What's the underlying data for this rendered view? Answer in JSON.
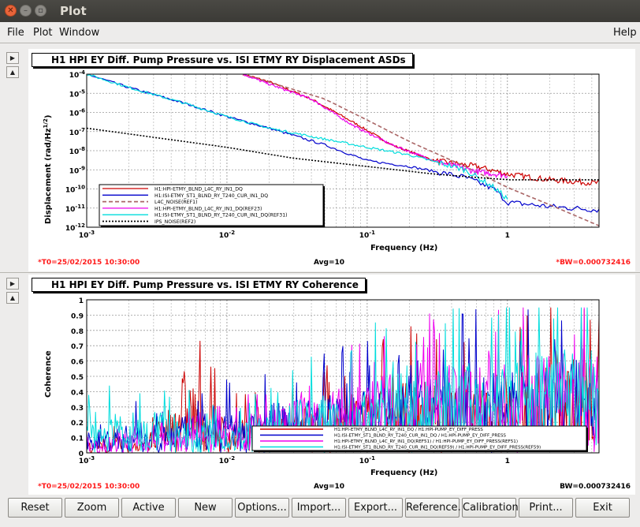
{
  "window": {
    "title": "Plot"
  },
  "menu": {
    "file": "File",
    "plot": "Plot",
    "window": "Window",
    "help": "Help"
  },
  "buttons": {
    "reset": "Reset",
    "zoom": "Zoom",
    "active": "Active",
    "new": "New",
    "options": "Options...",
    "import": "Import...",
    "export": "Export...",
    "reference": "Reference...",
    "calibration": "Calibration...",
    "print": "Print...",
    "exit": "Exit"
  },
  "panel1": {
    "title": "H1 HPI EY Diff. Pump Pressure vs. ISI ETMY RY Displacement ASDs",
    "t0": "*T0=25/02/2015 10:30:00",
    "avg": "Avg=10",
    "bw": "*BW=0.000732416"
  },
  "panel2": {
    "title": "H1 HPI EY Diff. Pump Pressure vs. ISI ETMY RY Coherence",
    "t0": "*T0=25/02/2015 10:30:00",
    "avg": "Avg=10",
    "bw": "BW=0.000732416"
  },
  "chart_data": [
    {
      "type": "line",
      "title": "H1 HPI EY Diff. Pump Pressure vs. ISI ETMY RY Displacement ASDs",
      "xlabel": "Frequency (Hz)",
      "ylabel": "Displacement (rad/Hz^1/2)",
      "xscale": "log",
      "yscale": "log",
      "xlim": [
        0.001,
        4.5
      ],
      "ylim": [
        1e-12,
        0.0001
      ],
      "grid": true,
      "x_ticks": [
        "10^-3",
        "10^-2",
        "10^-1",
        "1"
      ],
      "y_ticks": [
        "10^-12",
        "10^-11",
        "10^-10",
        "10^-9",
        "10^-8",
        "10^-7",
        "10^-6",
        "10^-5",
        "10^-4"
      ],
      "legend_position": "bottom-left",
      "series": [
        {
          "name": "H1:HPI-ETMY_BLND_L4C_RY_IN1_DQ",
          "color": "#cc0000",
          "style": "solid",
          "x": [
            0.013,
            0.02,
            0.04,
            0.08,
            0.15,
            0.3,
            0.6,
            1,
            2,
            4.5
          ],
          "y": [
            0.0001,
            4e-05,
            5e-06,
            3e-07,
            2e-08,
            3e-09,
            1.5e-09,
            6e-10,
            3e-10,
            2e-10
          ]
        },
        {
          "name": "H1:ISI-ETMY_ST1_BLND_RY_T240_CUR_IN1_DQ",
          "color": "#0000cc",
          "style": "solid",
          "x": [
            0.001,
            0.002,
            0.005,
            0.01,
            0.02,
            0.05,
            0.1,
            0.2,
            0.5,
            0.8,
            1,
            2,
            4.5
          ],
          "y": [
            0.0001,
            2e-05,
            3e-06,
            6e-07,
            1.5e-07,
            2e-08,
            3e-09,
            1.5e-09,
            4e-10,
            1e-10,
            2e-11,
            1.2e-11,
            8e-12
          ]
        },
        {
          "name": "L4C_NOISE(REF1)",
          "color": "#aa6666",
          "style": "dashed",
          "x": [
            0.013,
            0.05,
            0.1,
            0.2,
            0.5,
            1,
            2,
            4.5
          ],
          "y": [
            0.0001,
            5e-06,
            4e-07,
            3e-08,
            1.5e-09,
            1.2e-10,
            1.5e-11,
            1.2e-12
          ]
        },
        {
          "name": "H1:HPI-ETMY_BLND_L4C_RY_IN1_DQ(REF23)",
          "color": "#ee00ee",
          "style": "solid",
          "x": [
            0.013,
            0.02,
            0.04,
            0.08,
            0.15,
            0.3,
            0.6,
            1
          ],
          "y": [
            0.0001,
            3e-05,
            5e-06,
            2e-07,
            2e-08,
            3e-09,
            8e-10,
            5e-10
          ]
        },
        {
          "name": "H1:ISI-ETMY_ST1_BLND_RY_T240_CUR_IN1_DQ(REF31)",
          "color": "#00dddd",
          "style": "solid",
          "x": [
            0.001,
            0.002,
            0.005,
            0.01,
            0.02,
            0.05,
            0.1,
            0.2,
            0.5,
            0.8,
            1
          ],
          "y": [
            0.0001,
            2e-05,
            3e-06,
            6e-07,
            1.5e-07,
            4e-08,
            1.5e-08,
            6e-09,
            1e-09,
            1.2e-10,
            3e-11
          ]
        },
        {
          "name": "IPS_NOISE(REF2)",
          "color": "#000000",
          "style": "dotted",
          "x": [
            0.001,
            0.003,
            0.01,
            0.03,
            0.1,
            0.3,
            1,
            4.5
          ],
          "y": [
            1.5e-07,
            5e-08,
            1.5e-08,
            4e-09,
            1.5e-09,
            6e-10,
            3e-10,
            3e-10
          ]
        }
      ]
    },
    {
      "type": "line",
      "title": "H1 HPI EY Diff. Pump Pressure vs. ISI ETMY RY Coherence",
      "xlabel": "Frequency (Hz)",
      "ylabel": "Coherence",
      "xscale": "log",
      "xlim": [
        0.001,
        4.5
      ],
      "ylim": [
        0,
        1
      ],
      "grid": true,
      "y_ticks": [
        "0",
        "0.1",
        "0.2",
        "0.3",
        "0.4",
        "0.5",
        "0.6",
        "0.7",
        "0.8",
        "0.9",
        "1"
      ],
      "legend_position": "bottom-right",
      "series": [
        {
          "name": "H1:HPI-ETMY_BLND_L4C_RY_IN1_DQ / H1:HPI-PUMP_EY_DIFF_PRESS",
          "color": "#cc0000",
          "x": [
            0.001,
            0.003,
            0.005,
            0.01,
            0.03,
            0.1,
            0.3,
            1,
            3
          ],
          "y": [
            0.05,
            0.1,
            0.4,
            0.15,
            0.2,
            0.3,
            0.35,
            0.4,
            0.45
          ]
        },
        {
          "name": "H1:ISI-ETMY_ST1_BLND_RY_T240_CUR_IN1_DQ / H1:HPI-PUMP_EY_DIFF_PRESS",
          "color": "#0000cc",
          "x": [
            0.001,
            0.003,
            0.01,
            0.03,
            0.1,
            0.3,
            1,
            3
          ],
          "y": [
            0.1,
            0.15,
            0.2,
            0.25,
            0.3,
            0.35,
            0.4,
            0.45
          ]
        },
        {
          "name": "H1:HPI-ETMY_BLND_L4C_RY_IN1_DQ(REF51) / H1:HPI-PUMP_EY_DIFF_PRESS(REF51)",
          "color": "#ee00ee",
          "x": [
            0.001,
            0.003,
            0.01,
            0.03,
            0.1,
            0.3,
            1,
            3
          ],
          "y": [
            0.05,
            0.1,
            0.15,
            0.25,
            0.35,
            0.4,
            0.45,
            0.5
          ]
        },
        {
          "name": "H1:ISI-ETMY_ST1_BLND_RY_T240_CUR_IN1_DQ(REF59) / H1:HPI-PUMP_EY_DIFF_PRESS(REF59)",
          "color": "#00dddd",
          "x": [
            0.001,
            0.002,
            0.005,
            0.01,
            0.03,
            0.1,
            0.3,
            1,
            3
          ],
          "y": [
            0.15,
            0.2,
            0.18,
            0.1,
            0.25,
            0.35,
            0.4,
            0.45,
            0.5
          ]
        }
      ]
    }
  ]
}
